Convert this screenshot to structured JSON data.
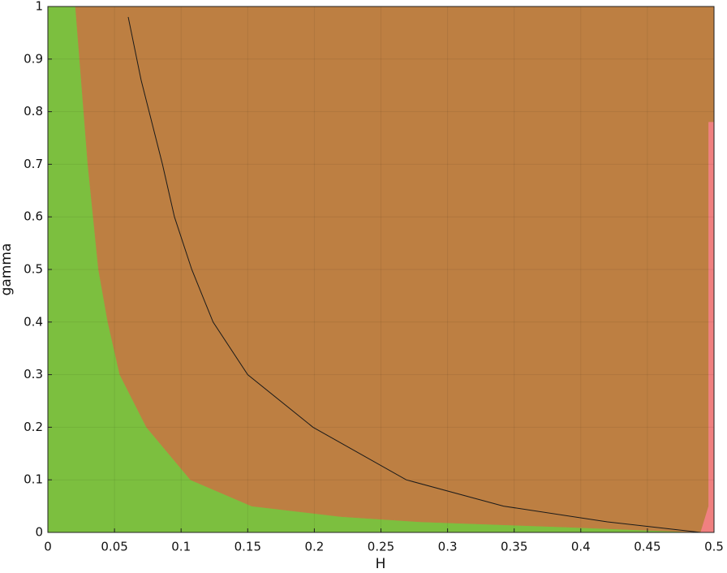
{
  "chart_data": {
    "type": "region",
    "xlabel": "H",
    "ylabel": "gamma",
    "xlim": [
      0,
      0.5
    ],
    "ylim": [
      0,
      1
    ],
    "xticks": [
      0,
      0.05,
      0.1,
      0.15,
      0.2,
      0.25,
      0.3,
      0.35,
      0.4,
      0.45,
      0.5
    ],
    "yticks": [
      0,
      0.1,
      0.2,
      0.3,
      0.4,
      0.5,
      0.6,
      0.7,
      0.8,
      0.9,
      1
    ],
    "grid": true,
    "regions": [
      {
        "color": "#7cbf3f",
        "x": [
          0,
          0,
          0.0207,
          0.03,
          0.038,
          0.045,
          0.054,
          0.074,
          0.107,
          0.153,
          0.22,
          0.28,
          0.39,
          0.49
        ],
        "y": [
          0,
          1,
          1,
          0.7,
          0.5,
          0.4,
          0.3,
          0.2,
          0.1,
          0.05,
          0.03,
          0.02,
          0.01,
          0
        ]
      },
      {
        "color": "#bd7f42",
        "x": [
          0.0207,
          0.03,
          0.038,
          0.045,
          0.054,
          0.074,
          0.107,
          0.153,
          0.22,
          0.28,
          0.39,
          0.49,
          0.496,
          0.496,
          0.5,
          0.5
        ],
        "y": [
          1,
          0.7,
          0.5,
          0.4,
          0.3,
          0.2,
          0.1,
          0.05,
          0.03,
          0.02,
          0.01,
          0,
          0.05,
          0.78,
          0.78,
          1
        ]
      },
      {
        "color": "#f08080",
        "x": [
          0.49,
          0.5,
          0.5,
          0.496,
          0.496
        ],
        "y": [
          0,
          0,
          0.78,
          0.78,
          0.05
        ]
      }
    ],
    "line": {
      "color": "#1a1a1a",
      "x": [
        0.0603,
        0.07,
        0.08,
        0.086,
        0.095,
        0.108,
        0.124,
        0.15,
        0.199,
        0.269,
        0.342,
        0.42,
        0.49
      ],
      "y": [
        0.98,
        0.86,
        0.76,
        0.7,
        0.6,
        0.5,
        0.4,
        0.3,
        0.2,
        0.1,
        0.05,
        0.02,
        0
      ]
    }
  }
}
